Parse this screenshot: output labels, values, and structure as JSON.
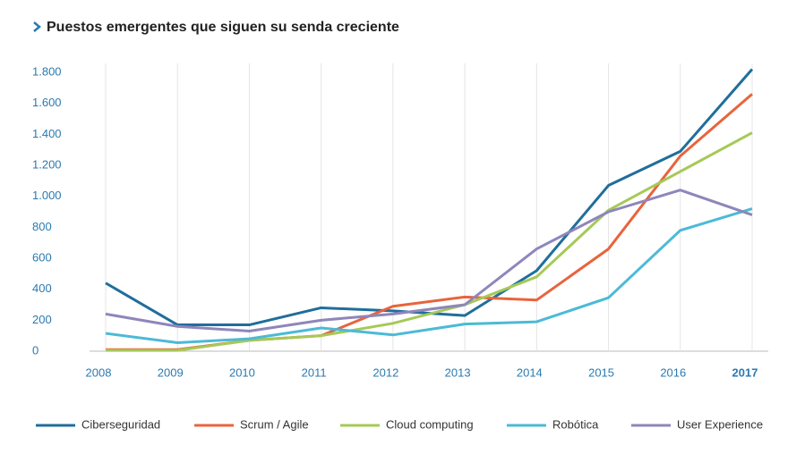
{
  "chart_data": {
    "type": "line",
    "title": "Puestos emergentes que siguen su senda creciente",
    "categories": [
      "2008",
      "2009",
      "2010",
      "2011",
      "2012",
      "2013",
      "2014",
      "2015",
      "2016",
      "2017"
    ],
    "highlight_last_category": true,
    "series": [
      {
        "name": "Ciberseguridad",
        "color": "#1f6e9c",
        "values": [
          440,
          170,
          170,
          280,
          260,
          230,
          520,
          1070,
          1290,
          1820
        ]
      },
      {
        "name": "Scrum / Agile",
        "color": "#e8643c",
        "values": [
          10,
          10,
          70,
          100,
          290,
          350,
          330,
          660,
          1260,
          1660
        ]
      },
      {
        "name": "Cloud computing",
        "color": "#a6c957",
        "values": [
          5,
          5,
          70,
          100,
          180,
          300,
          480,
          910,
          1160,
          1410
        ]
      },
      {
        "name": "Robótica",
        "color": "#4bbad6",
        "values": [
          115,
          55,
          80,
          150,
          105,
          175,
          190,
          345,
          780,
          920
        ]
      },
      {
        "name": "User Experience",
        "color": "#8e86bb",
        "values": [
          240,
          160,
          130,
          200,
          240,
          300,
          660,
          900,
          1040,
          880
        ]
      }
    ],
    "ylim": [
      0,
      1800
    ],
    "yticks": [
      0,
      200,
      400,
      600,
      800,
      {
        "value": 1000,
        "label": "1.000"
      },
      {
        "value": 1200,
        "label": "1.200"
      },
      {
        "value": 1400,
        "label": "1.400"
      },
      {
        "value": 1600,
        "label": "1.600"
      },
      {
        "value": 1800,
        "label": "1.800"
      }
    ],
    "grid": "vertical",
    "legend": "bottom"
  }
}
